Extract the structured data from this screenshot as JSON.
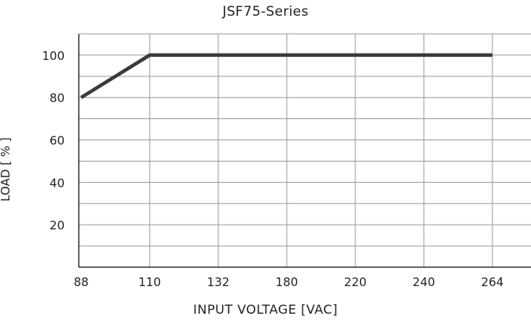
{
  "chart_data": {
    "type": "line",
    "title": "JSF75-Series",
    "xlabel": "INPUT VOLTAGE [VAC]",
    "ylabel": "LOAD [ % ]",
    "x_ticks": [
      "88",
      "110",
      "132",
      "180",
      "220",
      "240",
      "264"
    ],
    "y_ticks": [
      20,
      40,
      60,
      80,
      100
    ],
    "ylim": [
      0,
      110
    ],
    "x_scale": "categorical-evenly-spaced",
    "grid": true,
    "series": [
      {
        "x": [
          88,
          110,
          264
        ],
        "y": [
          80,
          100,
          100
        ]
      }
    ],
    "colors": {
      "line": "#3a3a3a",
      "grid": "#9a9a9a",
      "axis": "#333333"
    }
  }
}
